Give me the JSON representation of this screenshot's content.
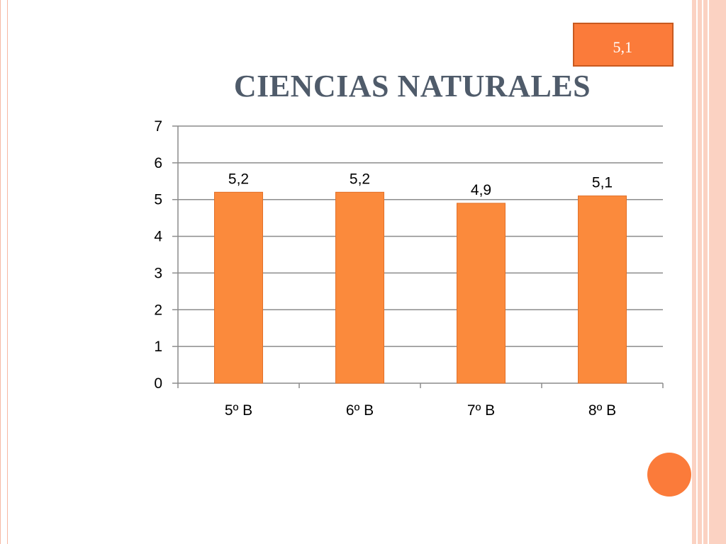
{
  "slide": {
    "badge": "5,1",
    "title": "CIENCIAS NATURALES"
  },
  "colors": {
    "bar": "#fb8a3c",
    "bar_border": "#e2712a",
    "accent": "#fb7b3a",
    "title": "#4f5b6a",
    "grid": "#8c8c8c"
  },
  "chart_data": {
    "type": "bar",
    "categories": [
      "5º B",
      "6º B",
      "7º B",
      "8º B"
    ],
    "values": [
      5.2,
      5.2,
      4.9,
      5.1
    ],
    "data_labels": [
      "5,2",
      "5,2",
      "4,9",
      "5,1"
    ],
    "yticks": [
      "0",
      "1",
      "2",
      "3",
      "4",
      "5",
      "6",
      "7"
    ],
    "ylim": [
      0,
      7
    ],
    "grid": true,
    "legend": "none"
  }
}
